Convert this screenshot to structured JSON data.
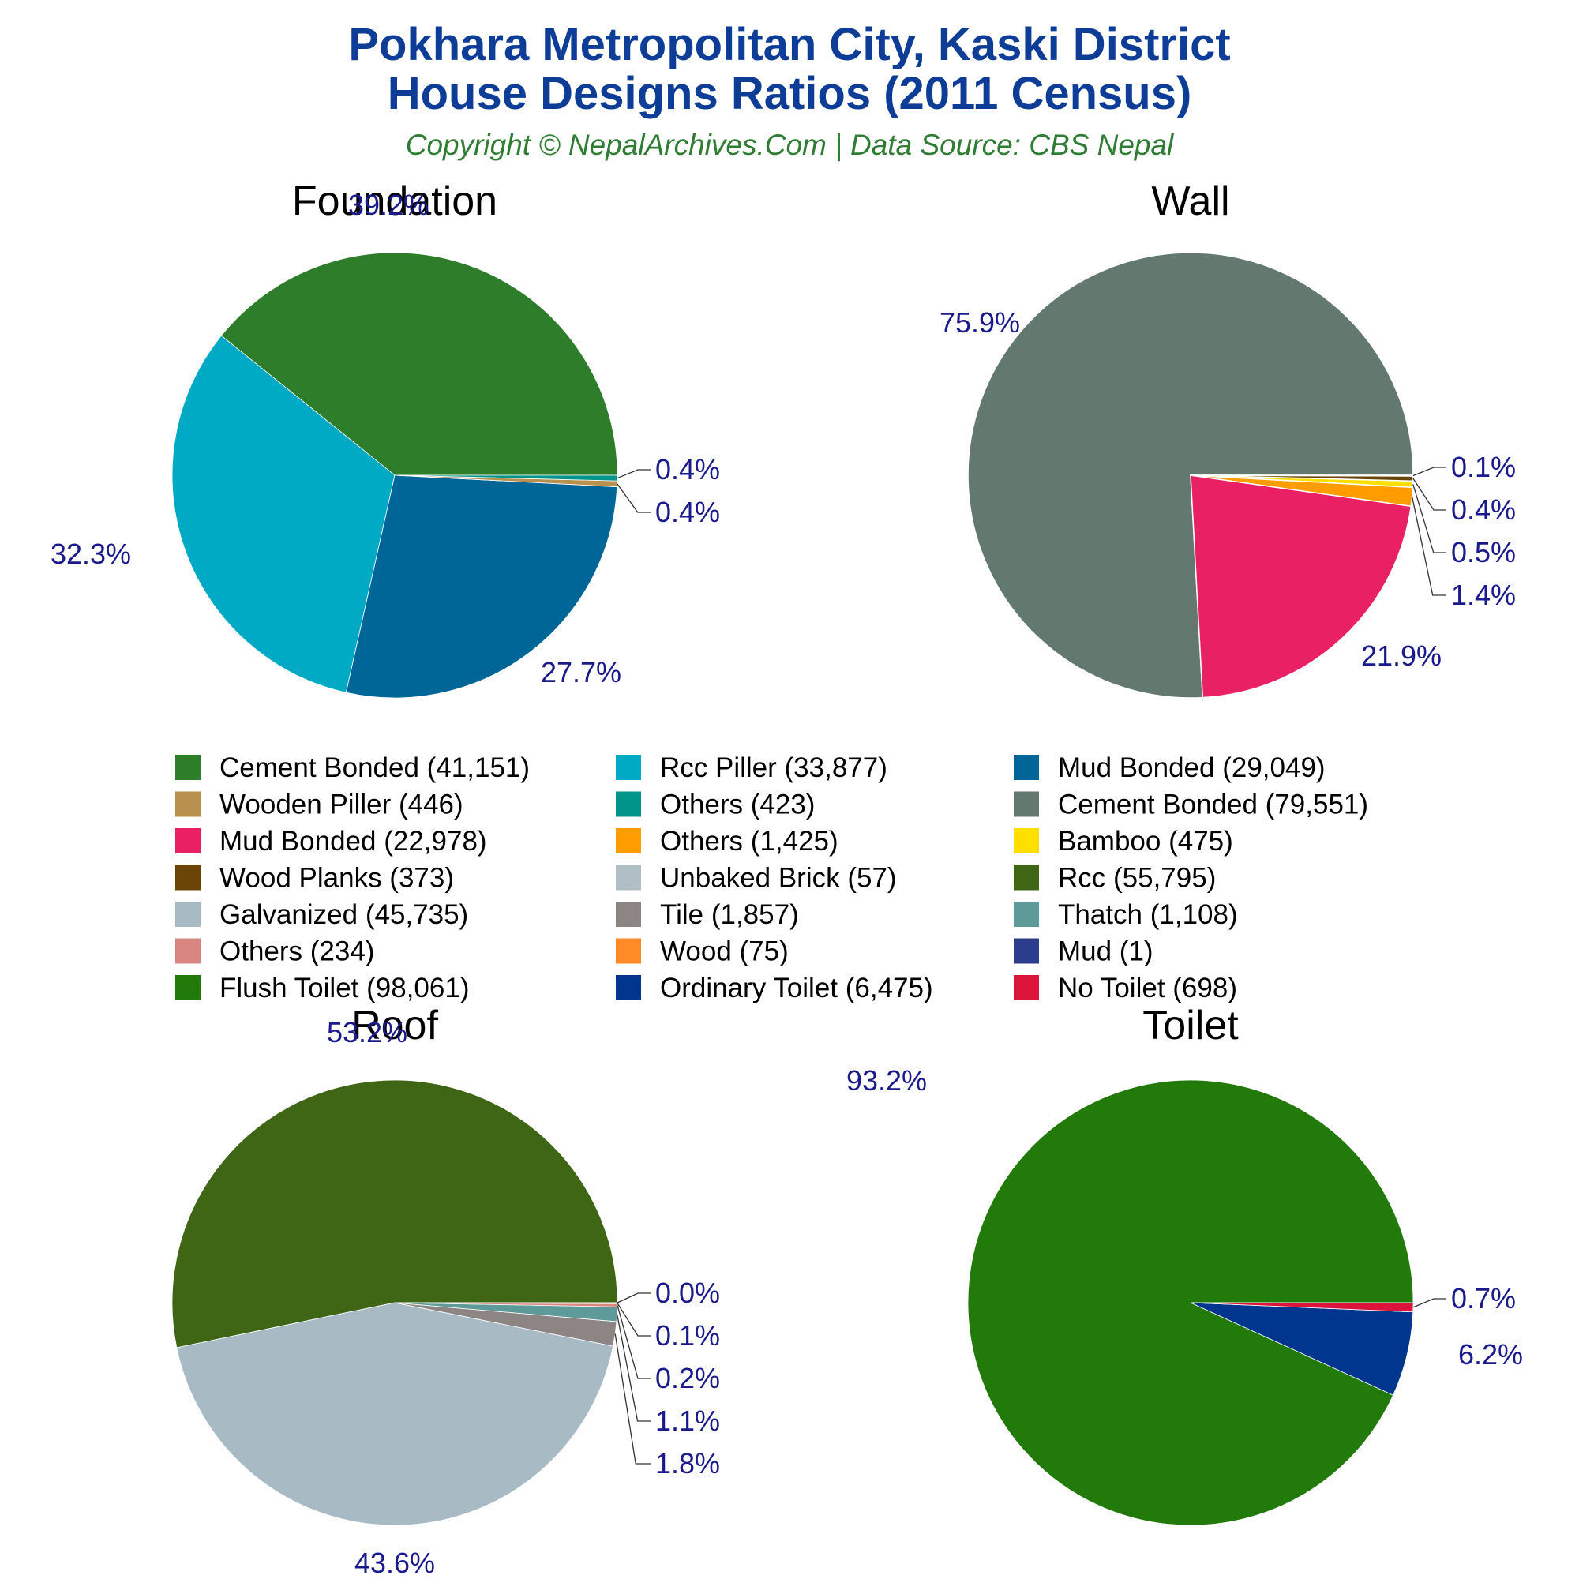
{
  "title_line1": "Pokhara Metropolitan City, Kaski District",
  "title_line2": "House Designs Ratios (2011 Census)",
  "subtitle": "Copyright © NepalArchives.Com | Data Source: CBS Nepal",
  "chart_data": [
    {
      "type": "pie",
      "title": "Foundation",
      "slices": [
        {
          "label": "Cement Bonded (41,151)",
          "value": 41151,
          "pct_label": "39.2%",
          "color": "#2e7d2a"
        },
        {
          "label": "Rcc Piller (33,877)",
          "value": 33877,
          "pct_label": "32.3%",
          "color": "#00aac4"
        },
        {
          "label": "Mud Bonded (29,049)",
          "value": 29049,
          "pct_label": "27.7%",
          "color": "#006698"
        },
        {
          "label": "Wooden Piller (446)",
          "value": 446,
          "pct_label": "0.4%",
          "color": "#b8914f"
        },
        {
          "label": "Others (423)",
          "value": 423,
          "pct_label": "0.4%",
          "color": "#00958a"
        }
      ]
    },
    {
      "type": "pie",
      "title": "Wall",
      "slices": [
        {
          "label": "Cement Bonded (79,551)",
          "value": 79551,
          "pct_label": "75.9%",
          "color": "#637970"
        },
        {
          "label": "Mud Bonded (22,978)",
          "value": 22978,
          "pct_label": "21.9%",
          "color": "#ea2064"
        },
        {
          "label": "Others (1,425)",
          "value": 1425,
          "pct_label": "1.4%",
          "color": "#ff9c00"
        },
        {
          "label": "Bamboo (475)",
          "value": 475,
          "pct_label": "0.5%",
          "color": "#ffdf00"
        },
        {
          "label": "Wood Planks (373)",
          "value": 373,
          "pct_label": "0.4%",
          "color": "#6b4408"
        },
        {
          "label": "Unbaked Brick (57)",
          "value": 57,
          "pct_label": "0.1%",
          "color": "#b0bec5"
        }
      ]
    },
    {
      "type": "pie",
      "title": "Roof",
      "slices": [
        {
          "label": "Rcc (55,795)",
          "value": 55795,
          "pct_label": "53.2%",
          "color": "#3f6614"
        },
        {
          "label": "Galvanized (45,735)",
          "value": 45735,
          "pct_label": "43.6%",
          "color": "#a8bbc4"
        },
        {
          "label": "Tile (1,857)",
          "value": 1857,
          "pct_label": "1.8%",
          "color": "#8c8583"
        },
        {
          "label": "Thatch (1,108)",
          "value": 1108,
          "pct_label": "1.1%",
          "color": "#5f9a9a"
        },
        {
          "label": "Others (234)",
          "value": 234,
          "pct_label": "0.2%",
          "color": "#d98580"
        },
        {
          "label": "Wood (75)",
          "value": 75,
          "pct_label": "0.1%",
          "color": "#ff8a26"
        },
        {
          "label": "Mud (1)",
          "value": 1,
          "pct_label": "0.0%",
          "color": "#2d3d8e"
        }
      ]
    },
    {
      "type": "pie",
      "title": "Toilet",
      "slices": [
        {
          "label": "Flush Toilet (98,061)",
          "value": 98061,
          "pct_label": "93.2%",
          "color": "#217a09"
        },
        {
          "label": "Ordinary Toilet (6,475)",
          "value": 6475,
          "pct_label": "6.2%",
          "color": "#00368e"
        },
        {
          "label": "No Toilet (698)",
          "value": 698,
          "pct_label": "0.7%",
          "color": "#dc143c"
        }
      ]
    }
  ],
  "legend": [
    {
      "label": "Cement Bonded (41,151)",
      "color": "#2e7d2a"
    },
    {
      "label": "Rcc Piller (33,877)",
      "color": "#00aac4"
    },
    {
      "label": "Mud Bonded (29,049)",
      "color": "#006698"
    },
    {
      "label": "Wooden Piller (446)",
      "color": "#b8914f"
    },
    {
      "label": "Others (423)",
      "color": "#00958a"
    },
    {
      "label": "Cement Bonded (79,551)",
      "color": "#637970"
    },
    {
      "label": "Mud Bonded (22,978)",
      "color": "#ea2064"
    },
    {
      "label": "Others (1,425)",
      "color": "#ff9c00"
    },
    {
      "label": "Bamboo (475)",
      "color": "#ffdf00"
    },
    {
      "label": "Wood Planks (373)",
      "color": "#6b4408"
    },
    {
      "label": "Unbaked Brick (57)",
      "color": "#b0bec5"
    },
    {
      "label": "Rcc (55,795)",
      "color": "#3f6614"
    },
    {
      "label": "Galvanized (45,735)",
      "color": "#a8bbc4"
    },
    {
      "label": "Tile (1,857)",
      "color": "#8c8583"
    },
    {
      "label": "Thatch (1,108)",
      "color": "#5f9a9a"
    },
    {
      "label": "Others (234)",
      "color": "#d98580"
    },
    {
      "label": "Wood (75)",
      "color": "#ff8a26"
    },
    {
      "label": "Mud (1)",
      "color": "#2d3d8e"
    },
    {
      "label": "Flush Toilet (98,061)",
      "color": "#217a09"
    },
    {
      "label": "Ordinary Toilet (6,475)",
      "color": "#00368e"
    },
    {
      "label": "No Toilet (698)",
      "color": "#dc143c"
    }
  ]
}
